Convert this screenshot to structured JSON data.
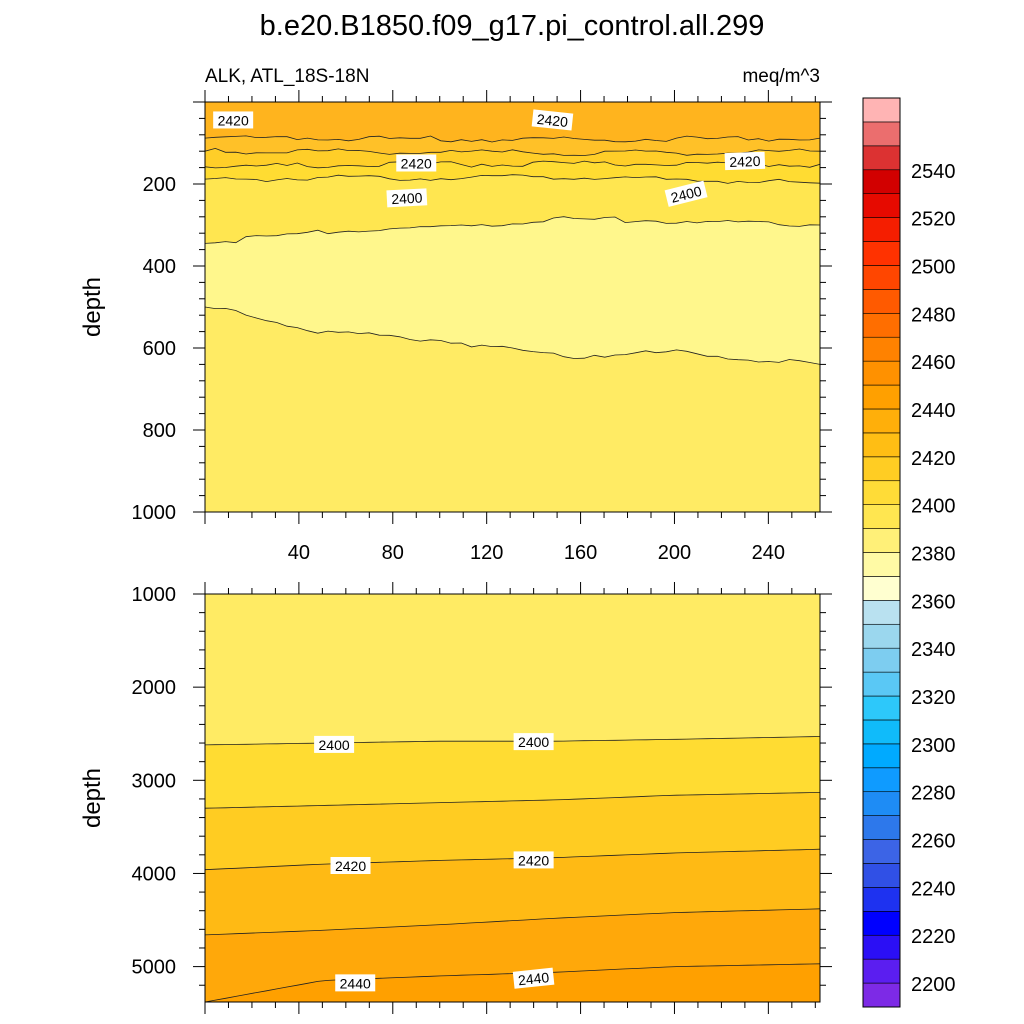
{
  "chart_data": {
    "type": "contour",
    "title": "b.e20.B1850.f09_g17.pi_control.all.299",
    "left_subtitle": "ALK, ATL_18S-18N",
    "right_subtitle": "meq/m^3",
    "colorbar": {
      "levels": [
        2190,
        2200,
        2210,
        2220,
        2230,
        2240,
        2250,
        2260,
        2270,
        2280,
        2290,
        2300,
        2310,
        2320,
        2330,
        2340,
        2350,
        2360,
        2370,
        2380,
        2390,
        2400,
        2410,
        2420,
        2430,
        2440,
        2450,
        2460,
        2470,
        2480,
        2490,
        2500,
        2510,
        2520,
        2530,
        2540,
        2550,
        2560
      ],
      "labels": [
        "2200",
        "2220",
        "2240",
        "2260",
        "2280",
        "2300",
        "2320",
        "2340",
        "2360",
        "2380",
        "2400",
        "2420",
        "2440",
        "2460",
        "2480",
        "2500",
        "2520",
        "2540"
      ],
      "colors": [
        "#7D2AE6",
        "#5B1EF0",
        "#2B0FF5",
        "#0000FF",
        "#1E32F0",
        "#3050E6",
        "#3C64E6",
        "#2D78EB",
        "#1E8CF5",
        "#0F9BFF",
        "#00AAFF",
        "#10BBFA",
        "#2DC8FA",
        "#5AC8F5",
        "#7DCDF0",
        "#9BD7EE",
        "#B9E1F0",
        "#FFFFD0",
        "#FFFAA5",
        "#FFF078",
        "#FFE650",
        "#FFDC37",
        "#FFCD23",
        "#FFBE14",
        "#FFAF0A",
        "#FFA000",
        "#FF9100",
        "#FF8200",
        "#FF6E00",
        "#FF5A00",
        "#FF4600",
        "#FF3200",
        "#F51E00",
        "#E60A00",
        "#D20000",
        "#DC3232",
        "#EB6E6E",
        "#FFB4B4"
      ]
    },
    "panels": [
      {
        "name": "upper",
        "ylabel": "depth",
        "ylim": [
          0,
          1000
        ],
        "y_ticks": [
          200,
          400,
          600,
          800,
          1000
        ],
        "y_tick_labels": [
          "200",
          "400",
          "600",
          "800",
          "1000"
        ],
        "xlim": [
          0,
          262
        ],
        "x_ticks": [
          40,
          80,
          120,
          160,
          200,
          240
        ],
        "x_tick_labels": [
          "40",
          "80",
          "120",
          "160",
          "200",
          "240"
        ],
        "bands": [
          {
            "value_range": [
              2430,
              2440
            ],
            "color": "#FFB41E",
            "top": [
              0,
              0,
              0,
              0,
              0,
              0
            ],
            "bottom": [
              88,
              88,
              90,
              92,
              90,
              88
            ]
          },
          {
            "value_range": [
              2420,
              2430
            ],
            "color": "#FFC128",
            "top": [
              88,
              88,
              90,
              92,
              90,
              88
            ],
            "bottom": [
              120,
              120,
              122,
              125,
              123,
              120
            ]
          },
          {
            "value_range": [
              2410,
              2420
            ],
            "color": "#FFCE28",
            "top": [
              120,
              120,
              122,
              125,
              123,
              120
            ],
            "bottom": [
              158,
              155,
              152,
              150,
              152,
              152
            ]
          },
          {
            "value_range": [
              2400,
              2410
            ],
            "color": "#FFDC32",
            "top": [
              158,
              155,
              152,
              150,
              152,
              152
            ],
            "bottom": [
              188,
              186,
              184,
              182,
              190,
              198
            ]
          },
          {
            "value_range": [
              2390,
              2400
            ],
            "color": "#FFE650",
            "top": [
              188,
              186,
              184,
              182,
              190,
              198
            ],
            "bottom": [
              345,
              315,
              305,
              285,
              290,
              300
            ]
          },
          {
            "value_range": [
              2380,
              2390
            ],
            "color": "#FFF78C",
            "top": [
              345,
              315,
              305,
              285,
              290,
              300
            ],
            "bottom": [
              500,
              560,
              580,
              620,
              610,
              640
            ]
          },
          {
            "value_range": [
              2390,
              2400
            ],
            "color": "#FFEB64",
            "top": [
              500,
              560,
              580,
              620,
              610,
              640
            ],
            "bottom": [
              1000,
              1000,
              1000,
              1000,
              1000,
              1000
            ]
          }
        ],
        "contour_xs": [
          0,
          50,
          100,
          150,
          200,
          262
        ],
        "contour_labels": [
          {
            "text": "2420",
            "x": 12,
            "y": 45,
            "angle": 0
          },
          {
            "text": "2420",
            "x": 148,
            "y": 45,
            "angle": 6
          },
          {
            "text": "2420",
            "x": 90,
            "y": 150,
            "angle": 0
          },
          {
            "text": "2420",
            "x": 230,
            "y": 145,
            "angle": -2
          },
          {
            "text": "2400",
            "x": 86,
            "y": 235,
            "angle": -3
          },
          {
            "text": "2400",
            "x": 205,
            "y": 225,
            "angle": -14
          }
        ]
      },
      {
        "name": "lower",
        "ylabel": "depth",
        "ylim": [
          1000,
          5380
        ],
        "y_ticks": [
          1000,
          2000,
          3000,
          4000,
          5000
        ],
        "y_tick_labels": [
          "1000",
          "2000",
          "3000",
          "4000",
          "5000"
        ],
        "xlim": [
          0,
          262
        ],
        "bands": [
          {
            "value_range": [
              2390,
              2400
            ],
            "color": "#FFEB64",
            "top": [
              1000,
              1000,
              1000,
              1000,
              1000,
              1000
            ],
            "bottom": [
              2620,
              2600,
              2580,
              2580,
              2560,
              2530
            ]
          },
          {
            "value_range": [
              2400,
              2410
            ],
            "color": "#FFDC32",
            "top": [
              2620,
              2600,
              2580,
              2580,
              2560,
              2530
            ],
            "bottom": [
              3300,
              3270,
              3240,
              3210,
              3160,
              3130
            ]
          },
          {
            "value_range": [
              2410,
              2420
            ],
            "color": "#FFCC22",
            "top": [
              3300,
              3270,
              3240,
              3210,
              3160,
              3130
            ],
            "bottom": [
              3960,
              3900,
              3860,
              3830,
              3780,
              3740
            ]
          },
          {
            "value_range": [
              2420,
              2430
            ],
            "color": "#FFBA14",
            "top": [
              3960,
              3900,
              3860,
              3830,
              3780,
              3740
            ],
            "bottom": [
              4660,
              4610,
              4550,
              4480,
              4420,
              4380
            ]
          },
          {
            "value_range": [
              2430,
              2440
            ],
            "color": "#FFA80A",
            "top": [
              4660,
              4610,
              4550,
              4480,
              4420,
              4380
            ],
            "bottom": [
              5380,
              5150,
              5100,
              5060,
              5000,
              4970
            ]
          },
          {
            "value_range": [
              2440,
              2450
            ],
            "color": "#FFA000",
            "top": [
              5380,
              5150,
              5100,
              5060,
              5000,
              4970
            ],
            "bottom": [
              5380,
              5380,
              5380,
              5380,
              5380,
              5380
            ]
          }
        ],
        "contour_xs": [
          0,
          50,
          100,
          150,
          200,
          262
        ],
        "contour_labels": [
          {
            "text": "2400",
            "x": 55,
            "y": 2620,
            "angle": 0
          },
          {
            "text": "2400",
            "x": 140,
            "y": 2590,
            "angle": 0
          },
          {
            "text": "2420",
            "x": 62,
            "y": 3920,
            "angle": 0
          },
          {
            "text": "2420",
            "x": 140,
            "y": 3860,
            "angle": 0
          },
          {
            "text": "2440",
            "x": 64,
            "y": 5180,
            "angle": 0
          },
          {
            "text": "2440",
            "x": 140,
            "y": 5130,
            "angle": -6
          }
        ]
      }
    ]
  }
}
